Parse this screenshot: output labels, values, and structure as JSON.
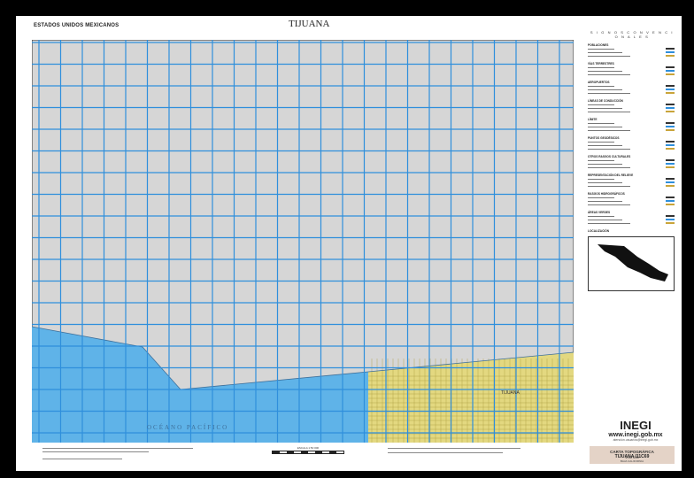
{
  "header": {
    "country": "ESTADOS UNIDOS MEXICANOS",
    "title": "TIJUANA"
  },
  "map": {
    "ocean_label": "OCÉANO   PACÍFICO",
    "city_label": "TIJUANA",
    "colors": {
      "land": "#d6d6d6",
      "ocean": "#5fb3e8",
      "grid": "#2f8fdc",
      "urban": "#e3d880"
    }
  },
  "legend": {
    "title": "S I G N O S   C O N V E N C I O N A L E S",
    "sections": [
      "POBLACIONES",
      "VÍAS TERRESTRES",
      "AEROPUERTOS",
      "LÍNEAS DE CONDUCCIÓN",
      "LÍMITE",
      "PUNTOS GEODÉSICOS",
      "OTROS RASGOS CULTURALES",
      "REPRESENTACIÓN DEL RELIEVE",
      "RASGOS HIDROGRÁFICOS",
      "ÁREAS VERDES",
      "LOCALIZACIÓN"
    ]
  },
  "brand": {
    "logo_text": "INEGI",
    "url": "www.inegi.gob.mx",
    "url_sub": "atención.usuarios@inegi.gob.mx"
  },
  "carta": {
    "title": "CARTA TOPOGRÁFICA",
    "scale": "1:50 000"
  },
  "sheet": {
    "id": "TIJUANA I11C69",
    "state": "BAJA CALIFORNIA"
  },
  "scale": {
    "label": "ESCALA 1:50 000"
  }
}
